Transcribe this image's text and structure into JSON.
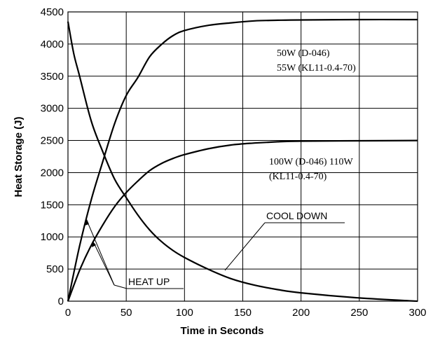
{
  "chart_data": {
    "type": "line",
    "title": "",
    "xlabel": "Time in Seconds",
    "ylabel": "Heat Storage  (J)",
    "xlim": [
      0,
      300
    ],
    "ylim": [
      0,
      4500
    ],
    "x_ticks": [
      0,
      50,
      100,
      150,
      200,
      250,
      300
    ],
    "y_ticks": [
      0,
      500,
      1000,
      1500,
      2000,
      2500,
      3000,
      3500,
      4000,
      4500
    ],
    "grid": true,
    "series": [
      {
        "x": [
          0,
          10,
          20,
          30,
          40,
          50,
          60,
          70,
          80,
          90,
          100,
          120,
          140,
          160,
          180,
          200,
          250,
          300
        ],
        "values": [
          0,
          860,
          1580,
          2180,
          2760,
          3200,
          3480,
          3800,
          3990,
          4130,
          4210,
          4290,
          4330,
          4360,
          4370,
          4375,
          4380,
          4380
        ]
      },
      {
        "x": [
          0,
          10,
          20,
          30,
          40,
          50,
          60,
          70,
          80,
          90,
          100,
          120,
          140,
          160,
          180,
          200,
          250,
          300
        ],
        "values": [
          0,
          480,
          870,
          1190,
          1470,
          1690,
          1870,
          2030,
          2140,
          2220,
          2280,
          2370,
          2430,
          2460,
          2480,
          2490,
          2495,
          2500
        ]
      },
      {
        "x": [
          0,
          5,
          10,
          20,
          30,
          40,
          50,
          60,
          70,
          80,
          90,
          100,
          120,
          140,
          160,
          180,
          200,
          250,
          300
        ],
        "values": [
          4350,
          3850,
          3500,
          2800,
          2320,
          1900,
          1610,
          1340,
          1110,
          930,
          790,
          680,
          500,
          350,
          250,
          180,
          130,
          50,
          0
        ]
      }
    ],
    "annotations": {
      "upper_label_line1": "50W (D-046)",
      "upper_label_line2": "55W (KL11-0.4-70)",
      "lower_label_line1": "100W (D-046) 110W",
      "lower_label_line2": "(KL11-0.4-70)",
      "cool_down": "COOL DOWN",
      "heat_up": "HEAT UP"
    }
  }
}
